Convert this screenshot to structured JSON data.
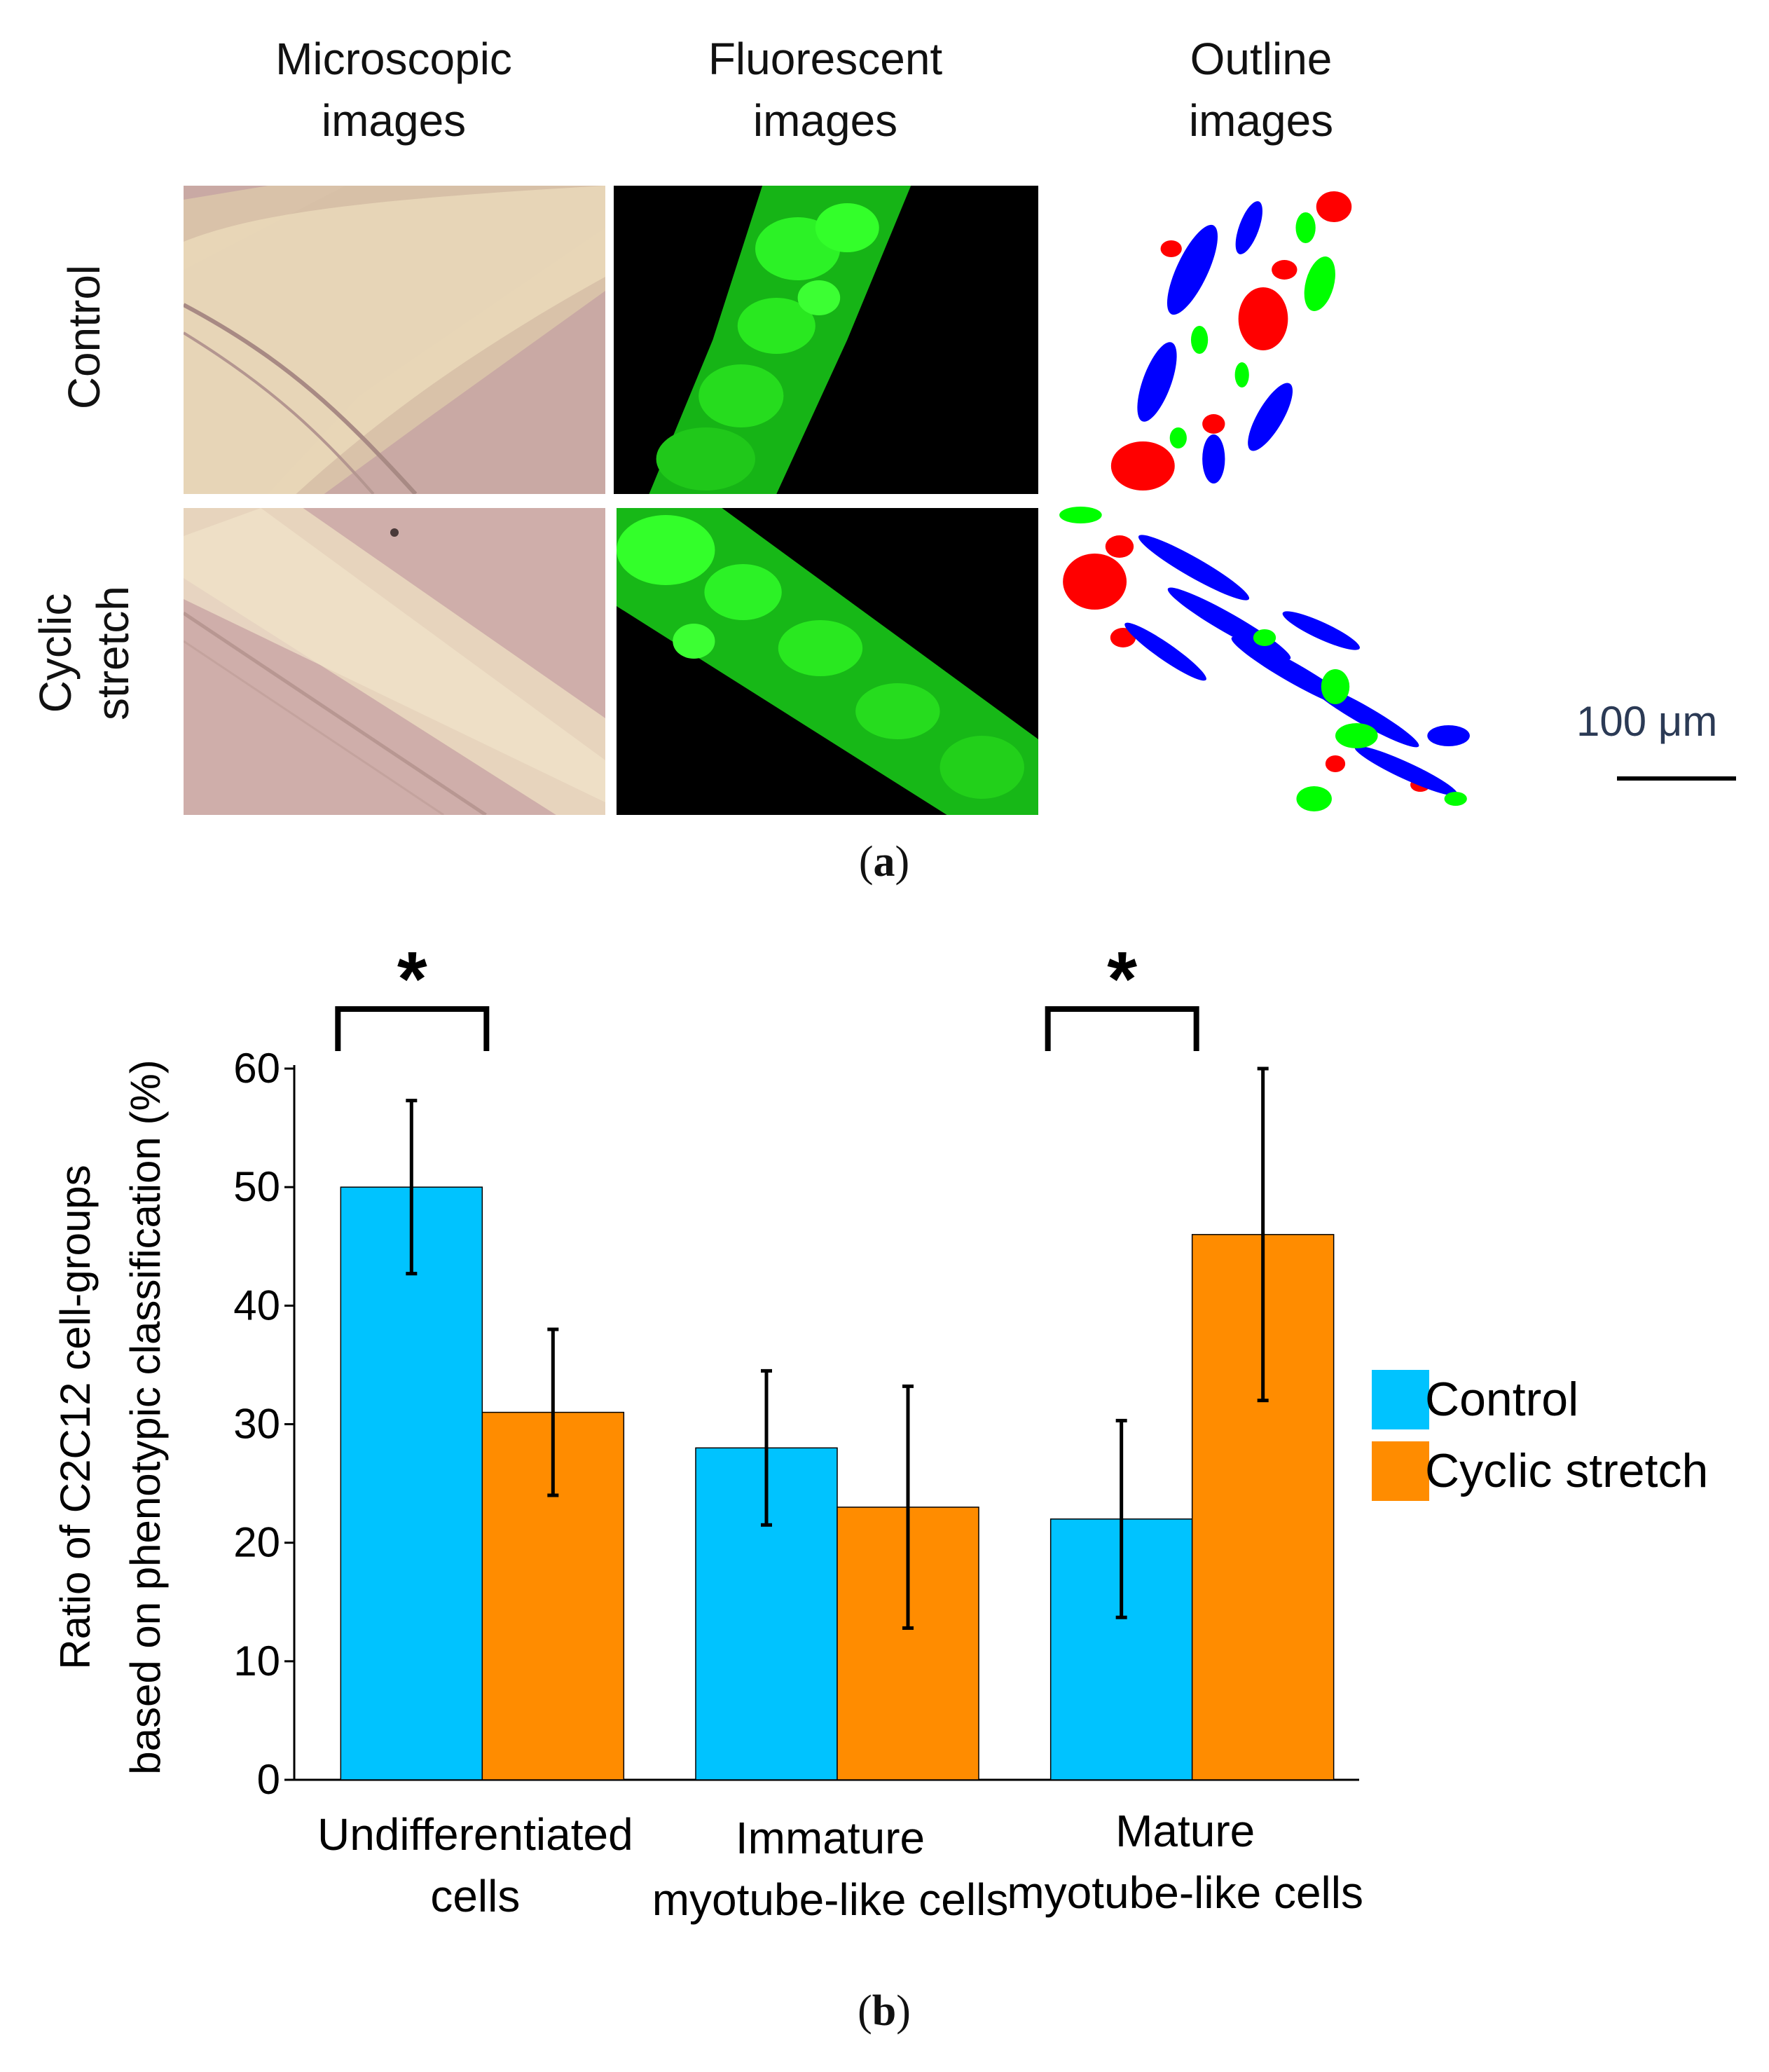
{
  "panel_a": {
    "column_headers": [
      {
        "line1": "Microscopic",
        "line2": "images"
      },
      {
        "line1": "Fluorescent",
        "line2": "images"
      },
      {
        "line1": "Outline",
        "line2": "images"
      }
    ],
    "row_headers": [
      {
        "line1": "Control",
        "line2": ""
      },
      {
        "line1": "Cyclic",
        "line2": "stretch"
      }
    ],
    "scale_bar_label": "100 μm",
    "caption_letter": "a",
    "colors": {
      "microscopic_bg": "#c9a9a4",
      "microscopic_band": "#e8d6b8",
      "fluorescent_bg": "#000000",
      "fluorescent_cell": "#22e21a",
      "outline_bg": "#ffffff",
      "outline_red": "#ff0000",
      "outline_blue": "#0000ff",
      "outline_green": "#00ff00"
    }
  },
  "panel_b": {
    "caption_letter": "b"
  },
  "chart_data": {
    "type": "bar",
    "ylabel_line1": "Ratio of C2C12 cell-groups",
    "ylabel_line2": "based on phenotypic classification (%)",
    "ylim": [
      0,
      60
    ],
    "yticks": [
      "0",
      "10",
      "20",
      "30",
      "40",
      "50",
      "60"
    ],
    "categories": [
      {
        "line1": "Undifferentiated",
        "line2": "cells"
      },
      {
        "line1": "Immature",
        "line2": "myotube-like cells"
      },
      {
        "line1": "Mature",
        "line2": "myotube-like cells"
      }
    ],
    "series": [
      {
        "name": "Control",
        "color": "#00c3ff",
        "values": [
          50,
          28,
          22
        ],
        "errors": [
          7.3,
          6.5,
          8.3
        ]
      },
      {
        "name": "Cyclic stretch",
        "color": "#ff8c00",
        "values": [
          31,
          23,
          46
        ],
        "errors": [
          7,
          10.2,
          14
        ]
      }
    ],
    "significance": [
      {
        "category_index": 0,
        "label": "*"
      },
      {
        "category_index": 2,
        "label": "*"
      }
    ],
    "legend_position": "right",
    "grid": false
  }
}
